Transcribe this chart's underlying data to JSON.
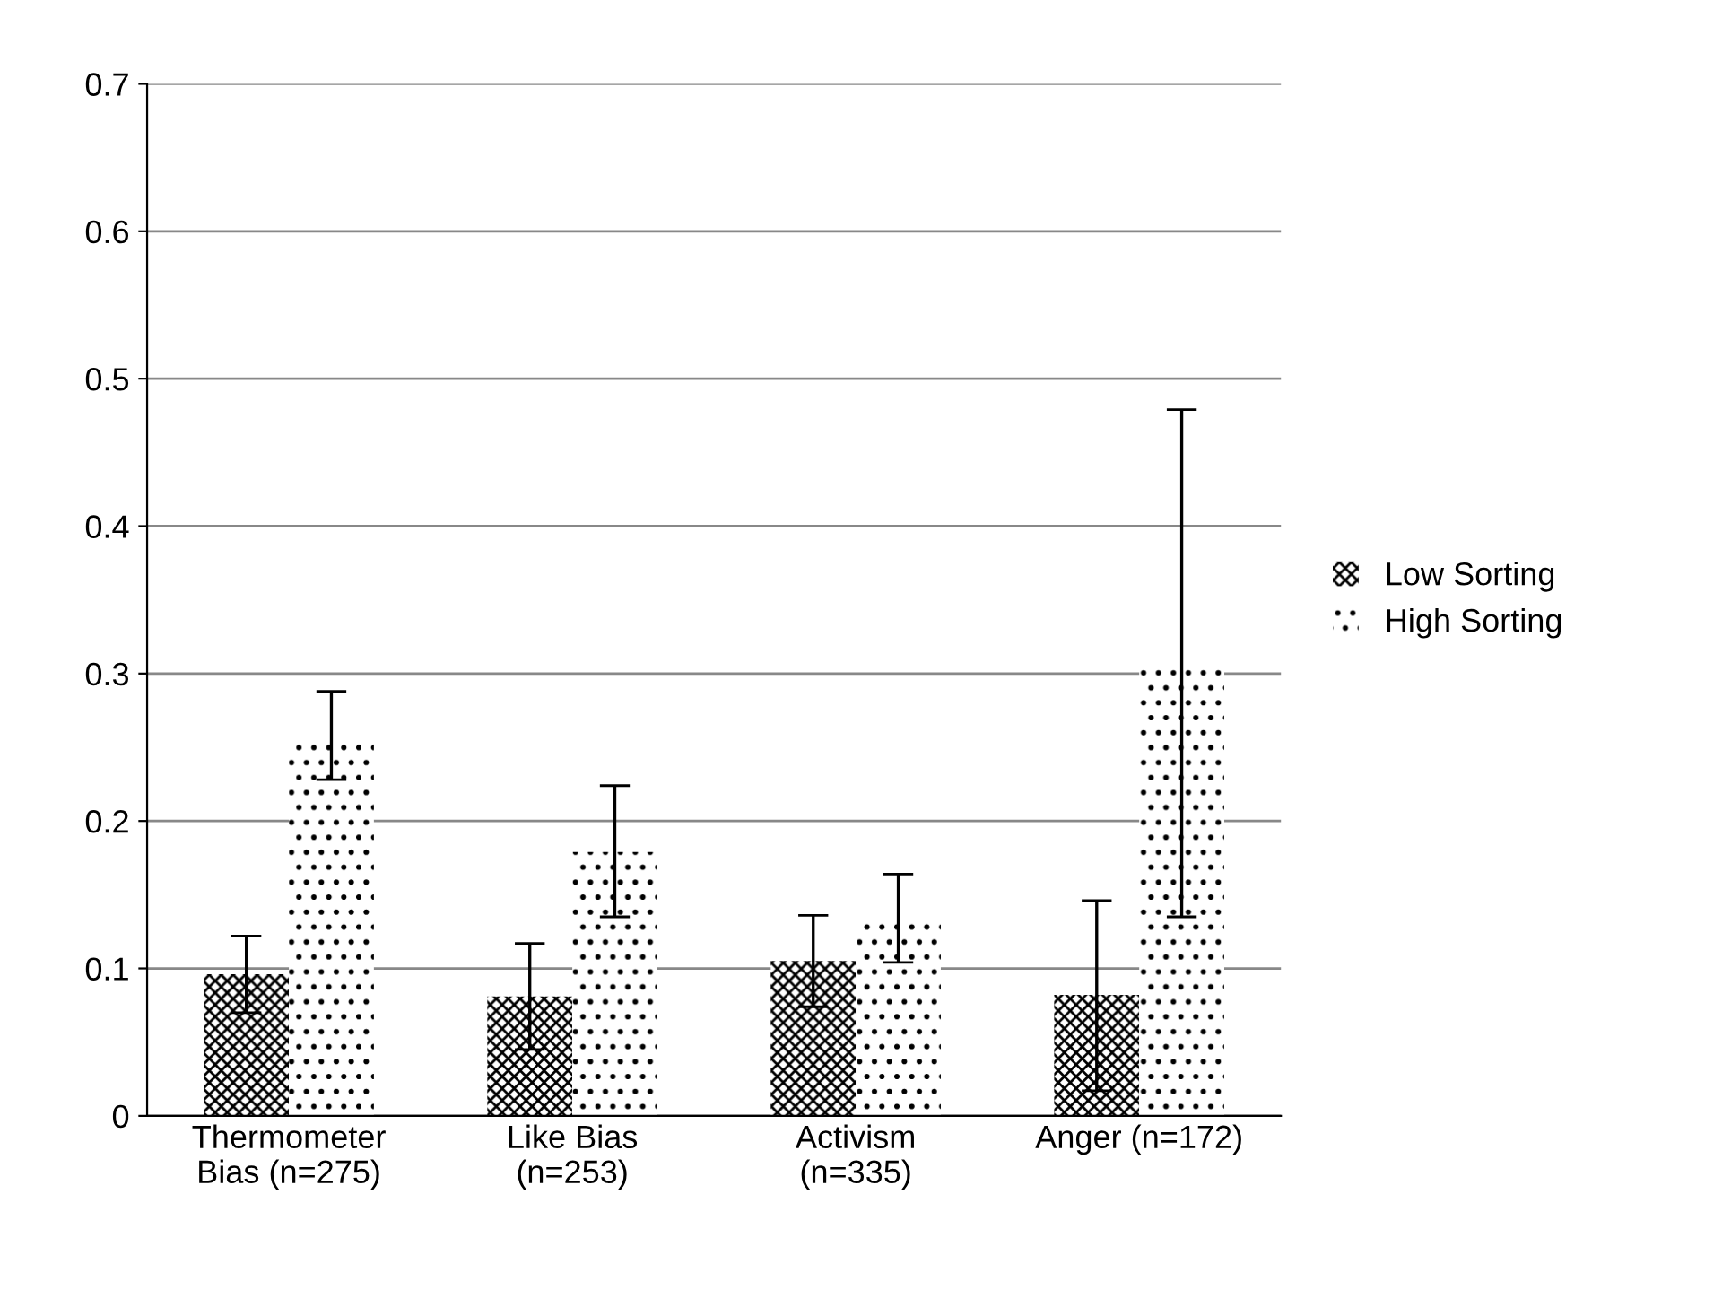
{
  "chart_data": {
    "type": "bar",
    "categories": [
      "Thermometer\nBias (n=275)",
      "Like Bias\n(n=253)",
      "Activism\n(n=335)",
      "Anger (n=172)"
    ],
    "series": [
      {
        "name": "Low Sorting",
        "color": "#000000",
        "values": [
          0.096,
          0.081,
          0.105,
          0.082
        ],
        "errors": [
          [
            0.07,
            0.122
          ],
          [
            0.045,
            0.117
          ],
          [
            0.074,
            0.136
          ],
          [
            0.017,
            0.146
          ]
        ]
      },
      {
        "name": "High Sorting",
        "color": "#000000",
        "values": [
          0.256,
          0.179,
          0.134,
          0.307
        ],
        "errors": [
          [
            0.228,
            0.288
          ],
          [
            0.135,
            0.224
          ],
          [
            0.104,
            0.164
          ],
          [
            0.135,
            0.479
          ]
        ]
      }
    ],
    "ylim": [
      0,
      0.7
    ],
    "yticks": [
      {
        "value": 0,
        "label": "0"
      },
      0.1,
      0.2,
      0.3,
      0.4,
      0.5,
      0.6,
      0.7
    ],
    "grid": "y",
    "legend": "right"
  }
}
